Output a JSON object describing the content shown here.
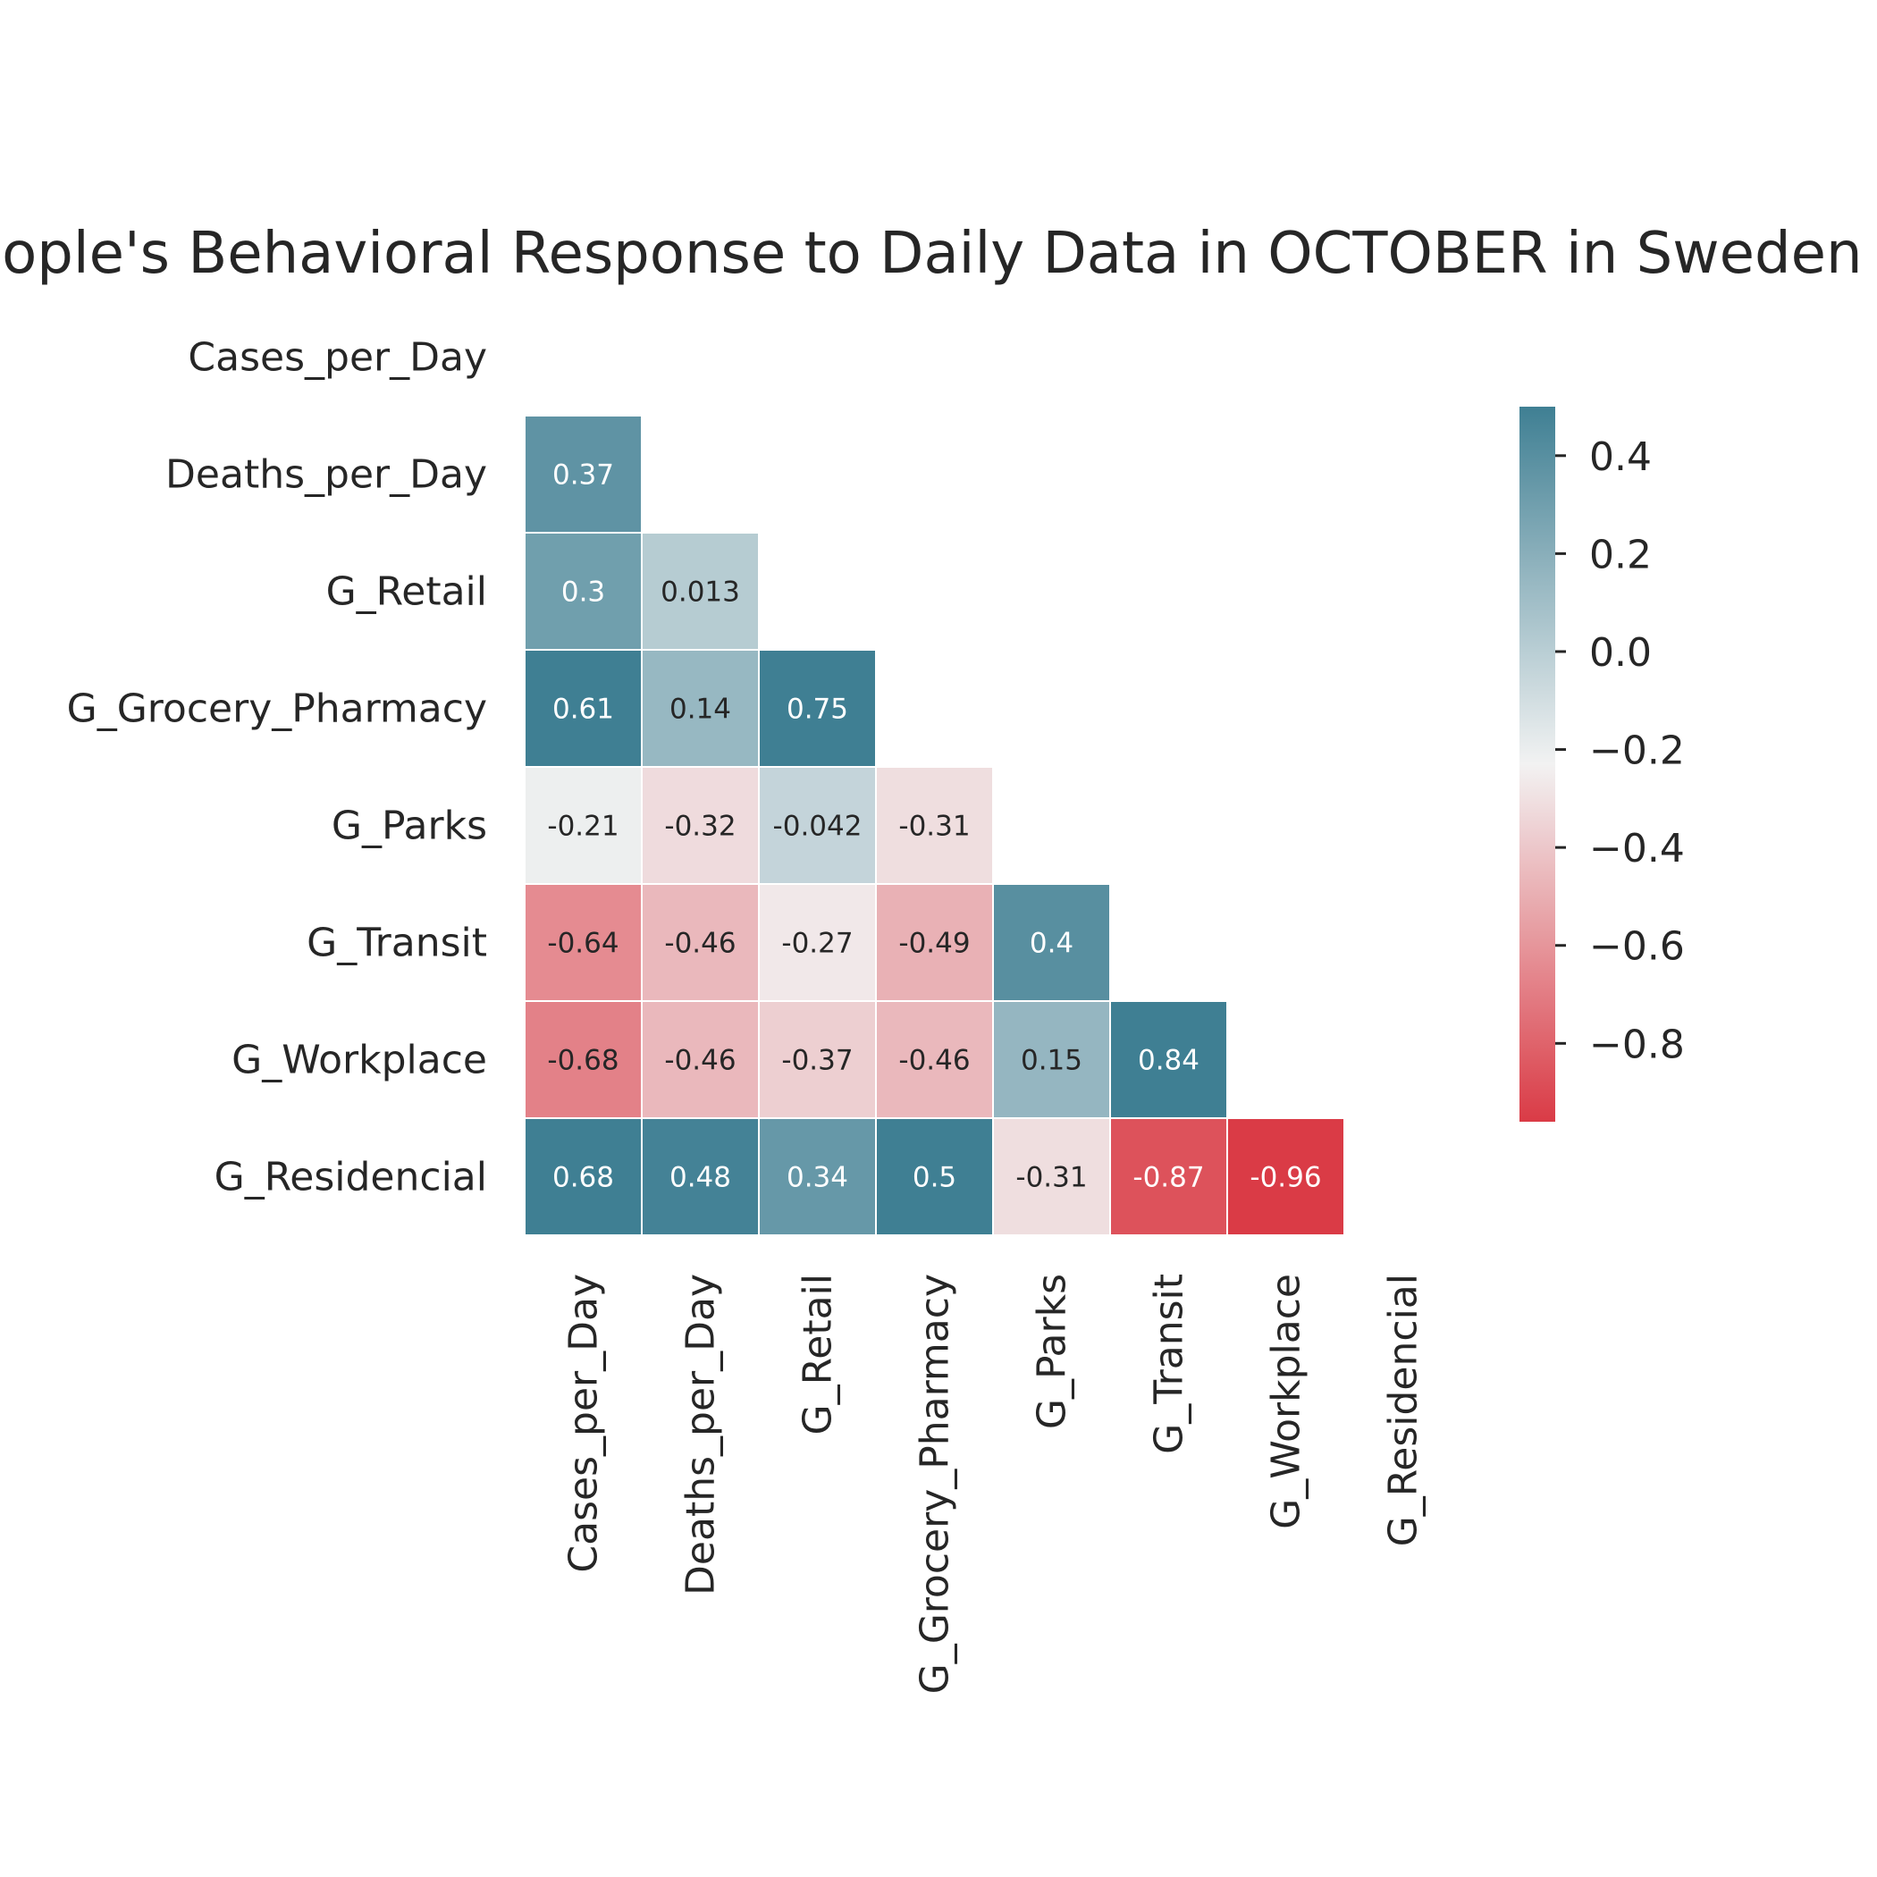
{
  "chart_data": {
    "type": "heatmap",
    "title": "People's Behavioral Response to Daily Data in OCTOBER in Sweden",
    "variables": [
      "Cases_per_Day",
      "Deaths_per_Day",
      "G_Retail",
      "G_Grocery_Pharmacy",
      "G_Parks",
      "G_Transit",
      "G_Workplace",
      "G_Residencial"
    ],
    "mask": "upper-triangle-including-diagonal",
    "cells": [
      {
        "row": 1,
        "col": 0,
        "value": 0.37,
        "label": "0.37"
      },
      {
        "row": 2,
        "col": 0,
        "value": 0.3,
        "label": "0.3"
      },
      {
        "row": 2,
        "col": 1,
        "value": 0.013,
        "label": "0.013"
      },
      {
        "row": 3,
        "col": 0,
        "value": 0.61,
        "label": "0.61"
      },
      {
        "row": 3,
        "col": 1,
        "value": 0.14,
        "label": "0.14"
      },
      {
        "row": 3,
        "col": 2,
        "value": 0.75,
        "label": "0.75"
      },
      {
        "row": 4,
        "col": 0,
        "value": -0.21,
        "label": "-0.21"
      },
      {
        "row": 4,
        "col": 1,
        "value": -0.32,
        "label": "-0.32"
      },
      {
        "row": 4,
        "col": 2,
        "value": -0.042,
        "label": "-0.042"
      },
      {
        "row": 4,
        "col": 3,
        "value": -0.31,
        "label": "-0.31"
      },
      {
        "row": 5,
        "col": 0,
        "value": -0.64,
        "label": "-0.64"
      },
      {
        "row": 5,
        "col": 1,
        "value": -0.46,
        "label": "-0.46"
      },
      {
        "row": 5,
        "col": 2,
        "value": -0.27,
        "label": "-0.27"
      },
      {
        "row": 5,
        "col": 3,
        "value": -0.49,
        "label": "-0.49"
      },
      {
        "row": 5,
        "col": 4,
        "value": 0.4,
        "label": "0.4"
      },
      {
        "row": 6,
        "col": 0,
        "value": -0.68,
        "label": "-0.68"
      },
      {
        "row": 6,
        "col": 1,
        "value": -0.46,
        "label": "-0.46"
      },
      {
        "row": 6,
        "col": 2,
        "value": -0.37,
        "label": "-0.37"
      },
      {
        "row": 6,
        "col": 3,
        "value": -0.46,
        "label": "-0.46"
      },
      {
        "row": 6,
        "col": 4,
        "value": 0.15,
        "label": "0.15"
      },
      {
        "row": 6,
        "col": 5,
        "value": 0.84,
        "label": "0.84"
      },
      {
        "row": 7,
        "col": 0,
        "value": 0.68,
        "label": "0.68"
      },
      {
        "row": 7,
        "col": 1,
        "value": 0.48,
        "label": "0.48"
      },
      {
        "row": 7,
        "col": 2,
        "value": 0.34,
        "label": "0.34"
      },
      {
        "row": 7,
        "col": 3,
        "value": 0.5,
        "label": "0.5"
      },
      {
        "row": 7,
        "col": 4,
        "value": -0.31,
        "label": "-0.31"
      },
      {
        "row": 7,
        "col": 5,
        "value": -0.87,
        "label": "-0.87"
      },
      {
        "row": 7,
        "col": 6,
        "value": -0.96,
        "label": "-0.96"
      }
    ],
    "colorbar": {
      "vmin": -0.96,
      "vmax": 0.5,
      "ticks": [
        0.4,
        0.2,
        0.0,
        -0.2,
        -0.4,
        -0.6,
        -0.8
      ],
      "tick_labels": [
        "0.4",
        "0.2",
        "0.0",
        "−0.2",
        "−0.4",
        "−0.6",
        "−0.8"
      ],
      "colormap": "diverging red-to-blue",
      "low_color": "#da3b46",
      "mid_color": "#f2f2f2",
      "high_color": "#3f7f93"
    },
    "grid": false,
    "colorbar_placement": "right"
  }
}
